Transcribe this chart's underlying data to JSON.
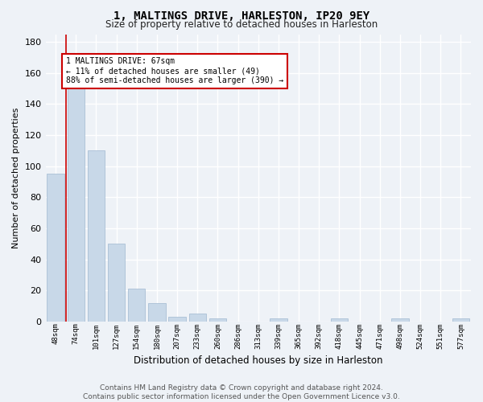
{
  "title": "1, MALTINGS DRIVE, HARLESTON, IP20 9EY",
  "subtitle": "Size of property relative to detached houses in Harleston",
  "xlabel": "Distribution of detached houses by size in Harleston",
  "ylabel": "Number of detached properties",
  "bar_labels": [
    "48sqm",
    "74sqm",
    "101sqm",
    "127sqm",
    "154sqm",
    "180sqm",
    "207sqm",
    "233sqm",
    "260sqm",
    "286sqm",
    "313sqm",
    "339sqm",
    "365sqm",
    "392sqm",
    "418sqm",
    "445sqm",
    "471sqm",
    "498sqm",
    "524sqm",
    "551sqm",
    "577sqm"
  ],
  "bar_values": [
    95,
    150,
    110,
    50,
    21,
    12,
    3,
    5,
    2,
    0,
    0,
    2,
    0,
    0,
    2,
    0,
    0,
    2,
    0,
    0,
    2
  ],
  "bar_color": "#c8d8e8",
  "bar_edge_color": "#a0b8d0",
  "vline_x": 0.5,
  "vline_color": "#cc0000",
  "annotation_text": "1 MALTINGS DRIVE: 67sqm\n← 11% of detached houses are smaller (49)\n88% of semi-detached houses are larger (390) →",
  "annotation_box_color": "white",
  "annotation_box_edge": "#cc0000",
  "ylim": [
    0,
    185
  ],
  "yticks": [
    0,
    20,
    40,
    60,
    80,
    100,
    120,
    140,
    160,
    180
  ],
  "bg_color": "#eef2f7",
  "grid_color": "white",
  "footer": "Contains HM Land Registry data © Crown copyright and database right 2024.\nContains public sector information licensed under the Open Government Licence v3.0."
}
